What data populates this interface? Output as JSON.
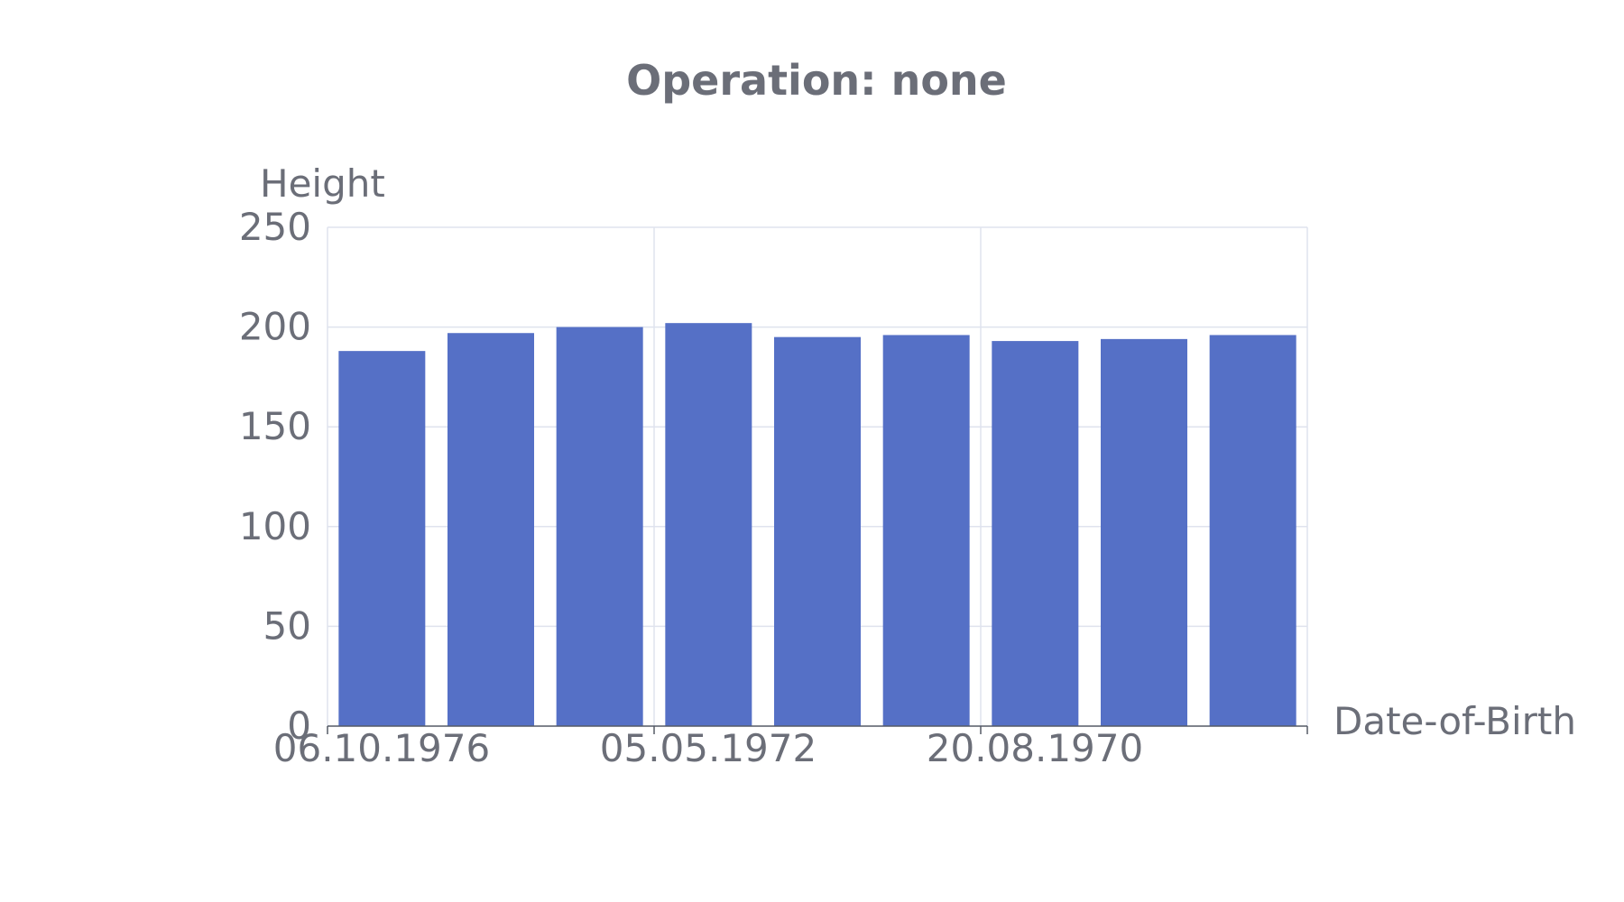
{
  "chart_data": {
    "type": "bar",
    "title": "Operation: none",
    "xlabel": "Date-of-Birth",
    "ylabel": "Height",
    "ylim": [
      0,
      250
    ],
    "yticks": [
      0,
      50,
      100,
      150,
      200,
      250
    ],
    "x_tick_labels": [
      "06.10.1976",
      "05.05.1972",
      "20.08.1970"
    ],
    "bar_count": 9,
    "values": [
      188,
      197,
      200,
      202,
      195,
      196,
      193,
      194,
      196
    ],
    "grid": true,
    "bar_color": "#5570c6"
  }
}
